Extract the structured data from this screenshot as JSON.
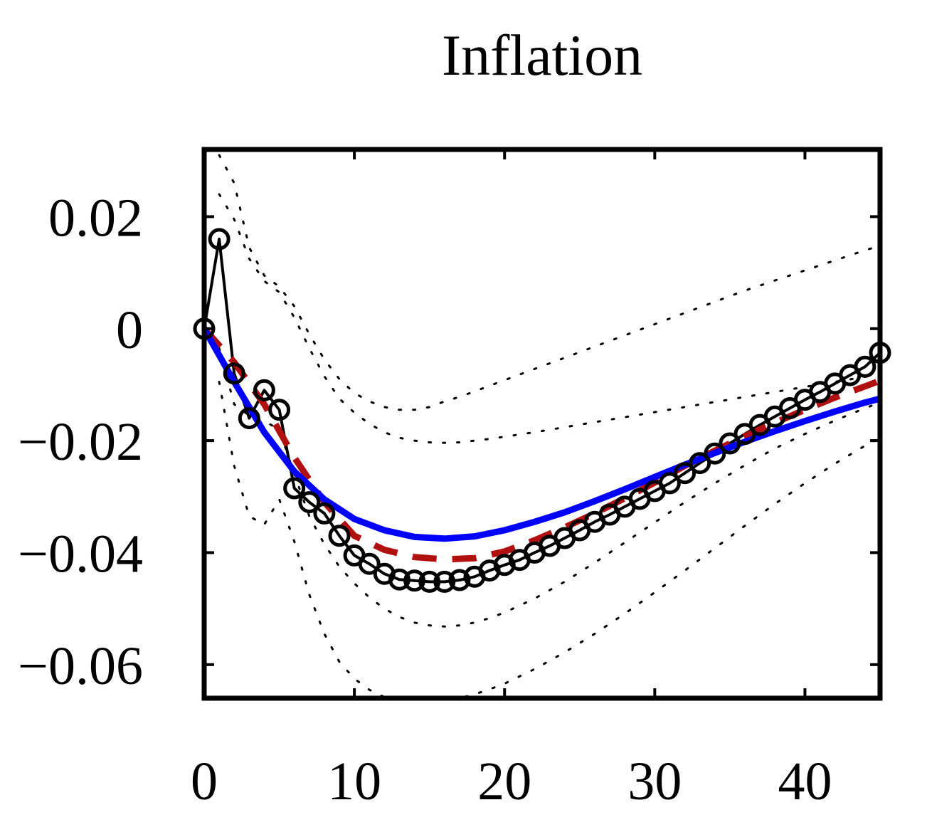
{
  "chart_data": {
    "type": "line",
    "title": "Inflation",
    "xlabel": "",
    "ylabel": "",
    "xlim": [
      0,
      45
    ],
    "ylim": [
      -0.066,
      0.032
    ],
    "x_ticks": [
      0,
      10,
      20,
      30,
      40
    ],
    "y_ticks": [
      -0.06,
      -0.04,
      -0.02,
      0,
      0.02
    ],
    "y_tick_labels": [
      "−0.06",
      "−0.04",
      "−0.02",
      "0",
      "0.02"
    ],
    "grid": false,
    "legend": "none",
    "colors": {
      "data_circles": "#000000",
      "model_blue": "#0000ff",
      "model_red_dashed": "#b01010",
      "bands": "#000000"
    },
    "series": [
      {
        "style": "solid-with-circles",
        "x": [
          0,
          1,
          2,
          3,
          4,
          5,
          6,
          7,
          8,
          9,
          10,
          11,
          12,
          13,
          14,
          15,
          16,
          17,
          18,
          19,
          20,
          21,
          22,
          23,
          24,
          25,
          26,
          27,
          28,
          29,
          30,
          31,
          32,
          33,
          34,
          35,
          36,
          37,
          38,
          39,
          40,
          41,
          42,
          43,
          44,
          45
        ],
        "values": [
          0.0,
          0.016,
          -0.008,
          -0.016,
          -0.011,
          -0.0145,
          -0.0285,
          -0.031,
          -0.033,
          -0.037,
          -0.0405,
          -0.042,
          -0.0438,
          -0.0448,
          -0.045,
          -0.0452,
          -0.0452,
          -0.0449,
          -0.0443,
          -0.0432,
          -0.0422,
          -0.0413,
          -0.04,
          -0.0388,
          -0.0374,
          -0.036,
          -0.0345,
          -0.0332,
          -0.0318,
          -0.0304,
          -0.029,
          -0.0276,
          -0.0258,
          -0.024,
          -0.0223,
          -0.0205,
          -0.0188,
          -0.0172,
          -0.0157,
          -0.0142,
          -0.0127,
          -0.0113,
          -0.0098,
          -0.0083,
          -0.0068,
          -0.0043
        ]
      },
      {
        "style": "solid-blue",
        "x": [
          0,
          2,
          4,
          6,
          8,
          10,
          12,
          14,
          16,
          18,
          20,
          22,
          24,
          26,
          28,
          30,
          32,
          34,
          36,
          38,
          40,
          42,
          44,
          45
        ],
        "values": [
          0.0,
          -0.0095,
          -0.0185,
          -0.0255,
          -0.0305,
          -0.034,
          -0.036,
          -0.0372,
          -0.0375,
          -0.0371,
          -0.036,
          -0.0345,
          -0.0328,
          -0.0308,
          -0.0287,
          -0.0265,
          -0.0243,
          -0.0222,
          -0.0202,
          -0.0183,
          -0.0165,
          -0.0148,
          -0.0132,
          -0.0125
        ]
      },
      {
        "style": "dashed-red",
        "x": [
          0,
          2,
          4,
          6,
          8,
          10,
          12,
          14,
          16,
          18,
          20,
          22,
          24,
          26,
          28,
          30,
          32,
          34,
          36,
          38,
          40,
          42,
          44,
          45
        ],
        "values": [
          0.0,
          -0.006,
          -0.0135,
          -0.023,
          -0.031,
          -0.037,
          -0.0395,
          -0.0408,
          -0.0412,
          -0.041,
          -0.0398,
          -0.0378,
          -0.0355,
          -0.033,
          -0.0303,
          -0.0275,
          -0.0245,
          -0.0218,
          -0.0192,
          -0.0168,
          -0.0145,
          -0.0123,
          -0.0103,
          -0.0093
        ]
      },
      {
        "style": "dotted-band",
        "x": [
          1,
          2,
          3,
          4,
          5,
          6,
          7,
          8,
          9,
          10,
          11,
          12,
          13,
          14,
          15,
          16,
          17,
          18,
          19,
          20,
          22,
          24,
          26,
          28,
          30,
          32,
          34,
          36,
          38,
          40,
          42,
          44,
          45
        ],
        "values": [
          0.031,
          0.026,
          0.0145,
          0.0095,
          0.0075,
          0.004,
          -0.001,
          -0.0055,
          -0.009,
          -0.0115,
          -0.013,
          -0.014,
          -0.0145,
          -0.0145,
          -0.014,
          -0.013,
          -0.0122,
          -0.0112,
          -0.0102,
          -0.0092,
          -0.0072,
          -0.0052,
          -0.0032,
          -0.0012,
          0.0008,
          0.0028,
          0.0048,
          0.0068,
          0.0086,
          0.0104,
          0.0122,
          0.014,
          0.0148
        ]
      },
      {
        "style": "dotted-band",
        "x": [
          1,
          2,
          3,
          4,
          5,
          6,
          7,
          8,
          9,
          10,
          11,
          12,
          13,
          14,
          15,
          16,
          17,
          18,
          19,
          20,
          22,
          24,
          26,
          28,
          30,
          32,
          34,
          36,
          38,
          40,
          42,
          44,
          45
        ],
        "values": [
          0.024,
          0.0195,
          0.0125,
          0.0085,
          0.0065,
          0.002,
          -0.0035,
          -0.0085,
          -0.0125,
          -0.015,
          -0.017,
          -0.0185,
          -0.0195,
          -0.02,
          -0.0203,
          -0.0204,
          -0.0203,
          -0.02,
          -0.0197,
          -0.0193,
          -0.0185,
          -0.0176,
          -0.0167,
          -0.0158,
          -0.0149,
          -0.014,
          -0.0131,
          -0.0122,
          -0.0113,
          -0.0104,
          -0.0095,
          -0.0086,
          -0.0082
        ]
      },
      {
        "style": "dotted-band",
        "x": [
          1,
          2,
          3,
          4,
          5,
          6,
          7,
          8,
          9,
          10,
          11,
          12,
          13,
          14,
          15,
          16,
          17,
          18,
          19,
          20,
          22,
          24,
          26,
          28,
          30,
          32,
          34,
          36,
          38,
          40,
          42,
          44,
          45
        ],
        "values": [
          -0.0035,
          -0.0135,
          -0.0155,
          -0.0165,
          -0.018,
          -0.026,
          -0.0335,
          -0.0385,
          -0.0425,
          -0.0455,
          -0.048,
          -0.05,
          -0.0515,
          -0.0525,
          -0.053,
          -0.0532,
          -0.053,
          -0.0525,
          -0.0517,
          -0.0507,
          -0.0482,
          -0.0452,
          -0.0418,
          -0.0382,
          -0.0346,
          -0.031,
          -0.0276,
          -0.0244,
          -0.0214,
          -0.0188,
          -0.0164,
          -0.0142,
          -0.0132
        ]
      },
      {
        "style": "dotted-band",
        "x": [
          1,
          2,
          3,
          4,
          5,
          6,
          7,
          8,
          9,
          10,
          11,
          12,
          13,
          14,
          15,
          16,
          17,
          18,
          19,
          20,
          22,
          24,
          26,
          28,
          30,
          32,
          34,
          36,
          38,
          40,
          42,
          44,
          45
        ],
        "values": [
          -0.0095,
          -0.0245,
          -0.0335,
          -0.035,
          -0.0305,
          -0.038,
          -0.0475,
          -0.0545,
          -0.0595,
          -0.0625,
          -0.0645,
          -0.0658,
          -0.0665,
          -0.0668,
          -0.0668,
          -0.0665,
          -0.066,
          -0.0653,
          -0.0644,
          -0.0634,
          -0.0608,
          -0.0578,
          -0.0545,
          -0.0509,
          -0.0471,
          -0.0432,
          -0.0392,
          -0.0352,
          -0.0313,
          -0.0276,
          -0.0241,
          -0.0209,
          -0.0195
        ]
      }
    ]
  }
}
